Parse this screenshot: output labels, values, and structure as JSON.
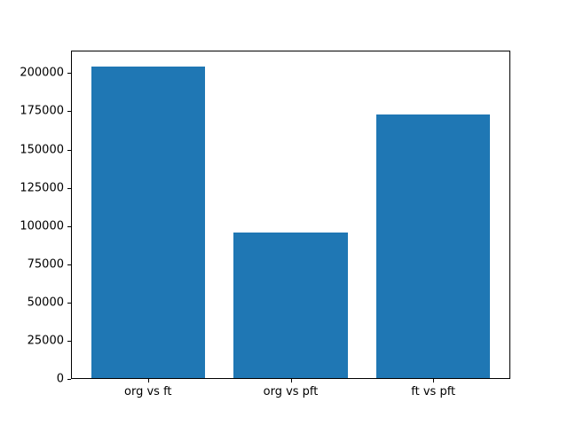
{
  "chart_data": {
    "type": "bar",
    "title": "",
    "xlabel": "",
    "ylabel": "",
    "categories": [
      "org vs ft",
      "org vs pft",
      "ft vs pft"
    ],
    "values": [
      204500,
      96000,
      173200
    ],
    "ylim": [
      0,
      214725
    ],
    "yticks": [
      0,
      25000,
      50000,
      75000,
      100000,
      125000,
      150000,
      175000,
      200000
    ],
    "ytick_labels": [
      "0",
      "25000",
      "50000",
      "75000",
      "100000",
      "125000",
      "150000",
      "175000",
      "200000"
    ],
    "bar_color": "#1f77b4",
    "spine_color": "#000000",
    "text_color": "#000000",
    "background_color": "#ffffff",
    "grid": false,
    "legend": null,
    "bar_width_fraction": 0.8
  }
}
